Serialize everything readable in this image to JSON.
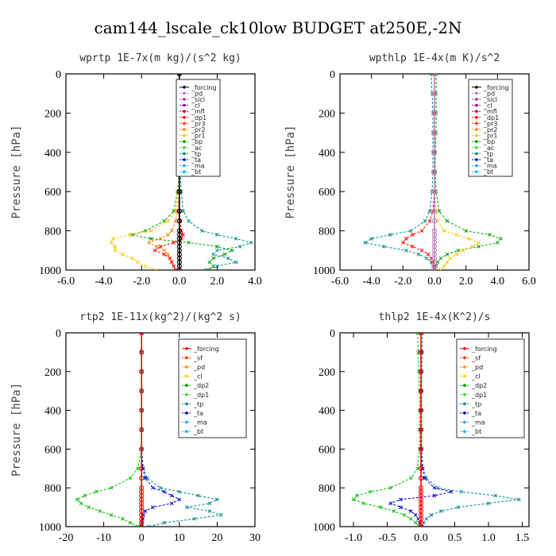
{
  "figure_title": "cam144_lscale_ck10low  BUDGET at250E,-2N",
  "chart_data": [
    {
      "id": "wprtp",
      "type": "line",
      "title": "wprtp  1E-7x(m kg)/(s^2 kg)",
      "ylabel": "Pressure [hPa]",
      "xlim": [
        -6,
        4
      ],
      "ylim": [
        1000,
        0
      ],
      "xticks": [
        -6,
        -4,
        -2,
        0,
        2,
        4
      ],
      "xtick_labels": [
        "-6.0",
        "-4.0",
        "-2.0",
        "0.0",
        "2.0",
        "4.0"
      ],
      "yticks": [
        0,
        200,
        400,
        600,
        800,
        1000
      ],
      "legend_entries": [
        "_forcing",
        "_pd",
        "_sicl",
        "_cl",
        "_mfl",
        "_dp1",
        "_pr3",
        "_pr2",
        "_pr1",
        "_bp",
        "_ac",
        "_tp",
        "_ta",
        "_ma",
        "_bt"
      ],
      "legend_placement": "top-center",
      "y": [
        0,
        100,
        200,
        300,
        400,
        500,
        600,
        700,
        750,
        800,
        820,
        840,
        860,
        880,
        900,
        920,
        940,
        960,
        980,
        1000
      ],
      "series": [
        {
          "name": "_forcing",
          "color": "#000000",
          "values": [
            0,
            0,
            0,
            0,
            0,
            0,
            0,
            0,
            0,
            0,
            0,
            0,
            0,
            0,
            0,
            0,
            0,
            0,
            0,
            0
          ]
        },
        {
          "name": "_tp",
          "color": "#008b8b",
          "values": [
            0,
            0,
            0,
            0,
            0,
            0.05,
            0.1,
            0.2,
            0.5,
            1.2,
            2.0,
            3.0,
            3.8,
            3.2,
            2.0,
            1.8,
            2.6,
            3.0,
            2.0,
            1.4
          ]
        },
        {
          "name": "_bp",
          "color": "#00a000",
          "values": [
            0,
            0,
            0,
            0,
            0,
            0,
            -0.1,
            -0.3,
            -0.8,
            -1.8,
            -2.5,
            -1.5,
            0.5,
            2.0,
            2.8,
            2.4,
            1.8,
            1.6,
            1.8,
            1.5
          ]
        },
        {
          "name": "_pr1",
          "color": "#ffc800",
          "values": [
            0,
            0,
            0,
            0,
            0,
            0,
            -0.05,
            -0.2,
            -0.6,
            -1.5,
            -2.6,
            -3.5,
            -3.6,
            -3.4,
            -3.4,
            -3.0,
            -2.5,
            -2.2,
            -1.8,
            -1.2
          ]
        },
        {
          "name": "_pr2",
          "color": "#ff7f00",
          "values": [
            0,
            0,
            0,
            0,
            0,
            0,
            0,
            -0.1,
            -0.2,
            -0.4,
            -0.6,
            -1.0,
            -1.6,
            -1.2,
            -0.8,
            -0.6,
            -0.5,
            -0.4,
            -0.3,
            -0.2
          ]
        },
        {
          "name": "_dp1",
          "color": "#ff0000",
          "values": [
            0,
            0,
            0,
            0,
            0,
            0,
            0,
            0,
            0.05,
            0.1,
            0.2,
            0.1,
            -0.3,
            -1.0,
            -1.3,
            -0.8,
            -0.5,
            -0.4,
            -0.3,
            -0.2
          ]
        }
      ]
    },
    {
      "id": "wpthlp",
      "type": "line",
      "title": "wpthlp  1E-4x(m K)/s^2",
      "ylabel": "Pressure [hPa]",
      "xlim": [
        -6,
        6
      ],
      "ylim": [
        1000,
        0
      ],
      "xticks": [
        -6,
        -4,
        -2,
        0,
        2,
        4,
        6
      ],
      "xtick_labels": [
        "-6.0",
        "-4.0",
        "-2.0",
        "0.0",
        "2.0",
        "4.0",
        "6.0"
      ],
      "yticks": [
        0,
        200,
        400,
        600,
        800,
        1000
      ],
      "legend_entries": [
        "_forcing",
        "_pd",
        "_sicl",
        "_cl",
        "_mfl",
        "_dp1",
        "_pr3",
        "_pr2",
        "_pr1",
        "_bp",
        "_ac",
        "_tp",
        "_ta",
        "_ma",
        "_bt"
      ],
      "legend_placement": "top-right",
      "y": [
        0,
        100,
        200,
        300,
        400,
        500,
        600,
        700,
        750,
        800,
        820,
        840,
        860,
        880,
        900,
        920,
        940,
        960,
        980,
        1000
      ],
      "series": [
        {
          "name": "_forcing",
          "color": "#c080c0",
          "values": [
            0,
            0,
            0,
            0,
            0,
            0,
            0,
            0,
            0,
            0,
            0,
            0,
            0,
            0,
            0,
            0,
            0,
            0,
            0,
            0
          ]
        },
        {
          "name": "_tp",
          "color": "#008b8b",
          "values": [
            -0.2,
            -0.15,
            -0.1,
            -0.1,
            -0.1,
            -0.1,
            -0.15,
            -0.3,
            -0.6,
            -1.5,
            -2.8,
            -4.0,
            -4.4,
            -3.2,
            -1.8,
            -1.0,
            -0.5,
            -0.2,
            -0.1,
            0
          ]
        },
        {
          "name": "_bp",
          "color": "#00a000",
          "values": [
            0.1,
            0.1,
            0.1,
            0.1,
            0.05,
            0.05,
            0.1,
            0.3,
            0.8,
            2.0,
            3.5,
            4.2,
            4.0,
            2.8,
            1.5,
            0.8,
            0.4,
            0.2,
            0.1,
            0
          ]
        },
        {
          "name": "_pr1",
          "color": "#ffc800",
          "values": [
            0,
            0,
            0,
            0,
            0,
            0,
            0,
            0.1,
            0.2,
            0.6,
            1.4,
            2.2,
            2.8,
            2.4,
            1.8,
            1.4,
            1.0,
            0.8,
            0.6,
            0.4
          ]
        },
        {
          "name": "_dp1",
          "color": "#ff0000",
          "values": [
            0,
            0,
            0,
            0,
            0,
            0,
            0,
            -0.1,
            -0.3,
            -0.8,
            -1.4,
            -1.8,
            -2.0,
            -1.4,
            -0.8,
            -0.4,
            -0.2,
            -0.1,
            0,
            0
          ]
        }
      ]
    },
    {
      "id": "rtp2",
      "type": "line",
      "title": "rtp2  1E-11x(kg^2)/(kg^2 s)",
      "ylabel": "Pressure [hPa]",
      "xlim": [
        -20,
        30
      ],
      "ylim": [
        1000,
        0
      ],
      "xticks": [
        -20,
        -10,
        0,
        10,
        20,
        30
      ],
      "xtick_labels": [
        "-20",
        "-10",
        "0",
        "10",
        "20",
        "30"
      ],
      "yticks": [
        0,
        200,
        400,
        600,
        800,
        1000
      ],
      "legend_entries": [
        "_forcing",
        "_sf",
        "_pd",
        "_cl",
        "_dp2",
        "_dp1",
        "_tp",
        "_ta",
        "_ma",
        "_bt"
      ],
      "legend_placement": "top-right",
      "y": [
        0,
        100,
        200,
        300,
        400,
        500,
        600,
        700,
        750,
        800,
        820,
        840,
        860,
        880,
        900,
        920,
        940,
        960,
        980,
        1000
      ],
      "series": [
        {
          "name": "_forcing",
          "color": "#ff0000",
          "values": [
            0,
            0,
            0,
            0,
            0,
            0,
            0,
            0,
            0,
            0,
            0,
            0,
            0,
            0,
            0,
            0,
            0,
            0,
            0,
            0
          ]
        },
        {
          "name": "_dp1",
          "color": "#00c000",
          "values": [
            0,
            0,
            0,
            0,
            0,
            0,
            0,
            -1,
            -3,
            -8,
            -12,
            -15,
            -17,
            -16,
            -14,
            -11,
            -8,
            -5,
            -3,
            -1
          ]
        },
        {
          "name": "_tp",
          "color": "#008b8b",
          "values": [
            0,
            0,
            0,
            0,
            0,
            0,
            0,
            0.5,
            1.5,
            5,
            10,
            15,
            20,
            18,
            12,
            18,
            21,
            14,
            6,
            2
          ]
        },
        {
          "name": "_ta",
          "color": "#0000cc",
          "values": [
            0,
            0,
            0,
            0,
            0,
            0,
            0,
            0.3,
            1,
            3,
            6,
            8,
            10,
            8,
            3,
            1,
            0.5,
            0.3,
            0.1,
            0
          ]
        }
      ]
    },
    {
      "id": "thlp2",
      "type": "line",
      "title": "thlp2  1E-4x(K^2)/s",
      "ylabel": "",
      "xlim": [
        -1.2,
        1.6
      ],
      "ylim": [
        1000,
        0
      ],
      "xticks": [
        -1.0,
        -0.5,
        0.0,
        0.5,
        1.0,
        1.5
      ],
      "xtick_labels": [
        "-1.0",
        "-0.5",
        "0.0",
        "0.5",
        "1.0",
        "1.5"
      ],
      "yticks": [
        0,
        200,
        400,
        600,
        800,
        1000
      ],
      "legend_entries": [
        "_forcing",
        "_sf",
        "_pd",
        "_cl",
        "_dp2",
        "_dp1",
        "_tp",
        "_ta",
        "_ma",
        "_bt"
      ],
      "legend_placement": "top-right",
      "y": [
        0,
        100,
        200,
        300,
        400,
        500,
        600,
        700,
        750,
        800,
        820,
        840,
        860,
        880,
        900,
        920,
        940,
        960,
        980,
        1000
      ],
      "series": [
        {
          "name": "_forcing",
          "color": "#ff0000",
          "values": [
            0,
            0,
            0,
            0,
            0,
            0,
            0,
            0,
            0,
            0,
            0,
            0,
            0,
            0,
            0,
            0,
            0,
            0,
            0,
            0
          ]
        },
        {
          "name": "_dp1",
          "color": "#00c000",
          "values": [
            -0.05,
            -0.04,
            -0.03,
            -0.02,
            -0.02,
            -0.02,
            -0.02,
            -0.05,
            -0.15,
            -0.45,
            -0.75,
            -0.95,
            -1.0,
            -0.85,
            -0.6,
            -0.4,
            -0.25,
            -0.15,
            -0.08,
            -0.03
          ]
        },
        {
          "name": "_tp",
          "color": "#008b8b",
          "values": [
            0.02,
            0.02,
            0.01,
            0.01,
            0.01,
            0.01,
            0.01,
            0.03,
            0.08,
            0.25,
            0.6,
            1.1,
            1.45,
            1.0,
            0.55,
            0.3,
            0.15,
            0.08,
            0.04,
            0.02
          ]
        },
        {
          "name": "_ta",
          "color": "#0000cc",
          "values": [
            0,
            0,
            0,
            0,
            0,
            0,
            0,
            0.02,
            0.05,
            0.2,
            0.45,
            0.2,
            -0.3,
            -0.45,
            -0.3,
            -0.15,
            -0.08,
            -0.04,
            -0.02,
            0
          ]
        }
      ]
    }
  ]
}
